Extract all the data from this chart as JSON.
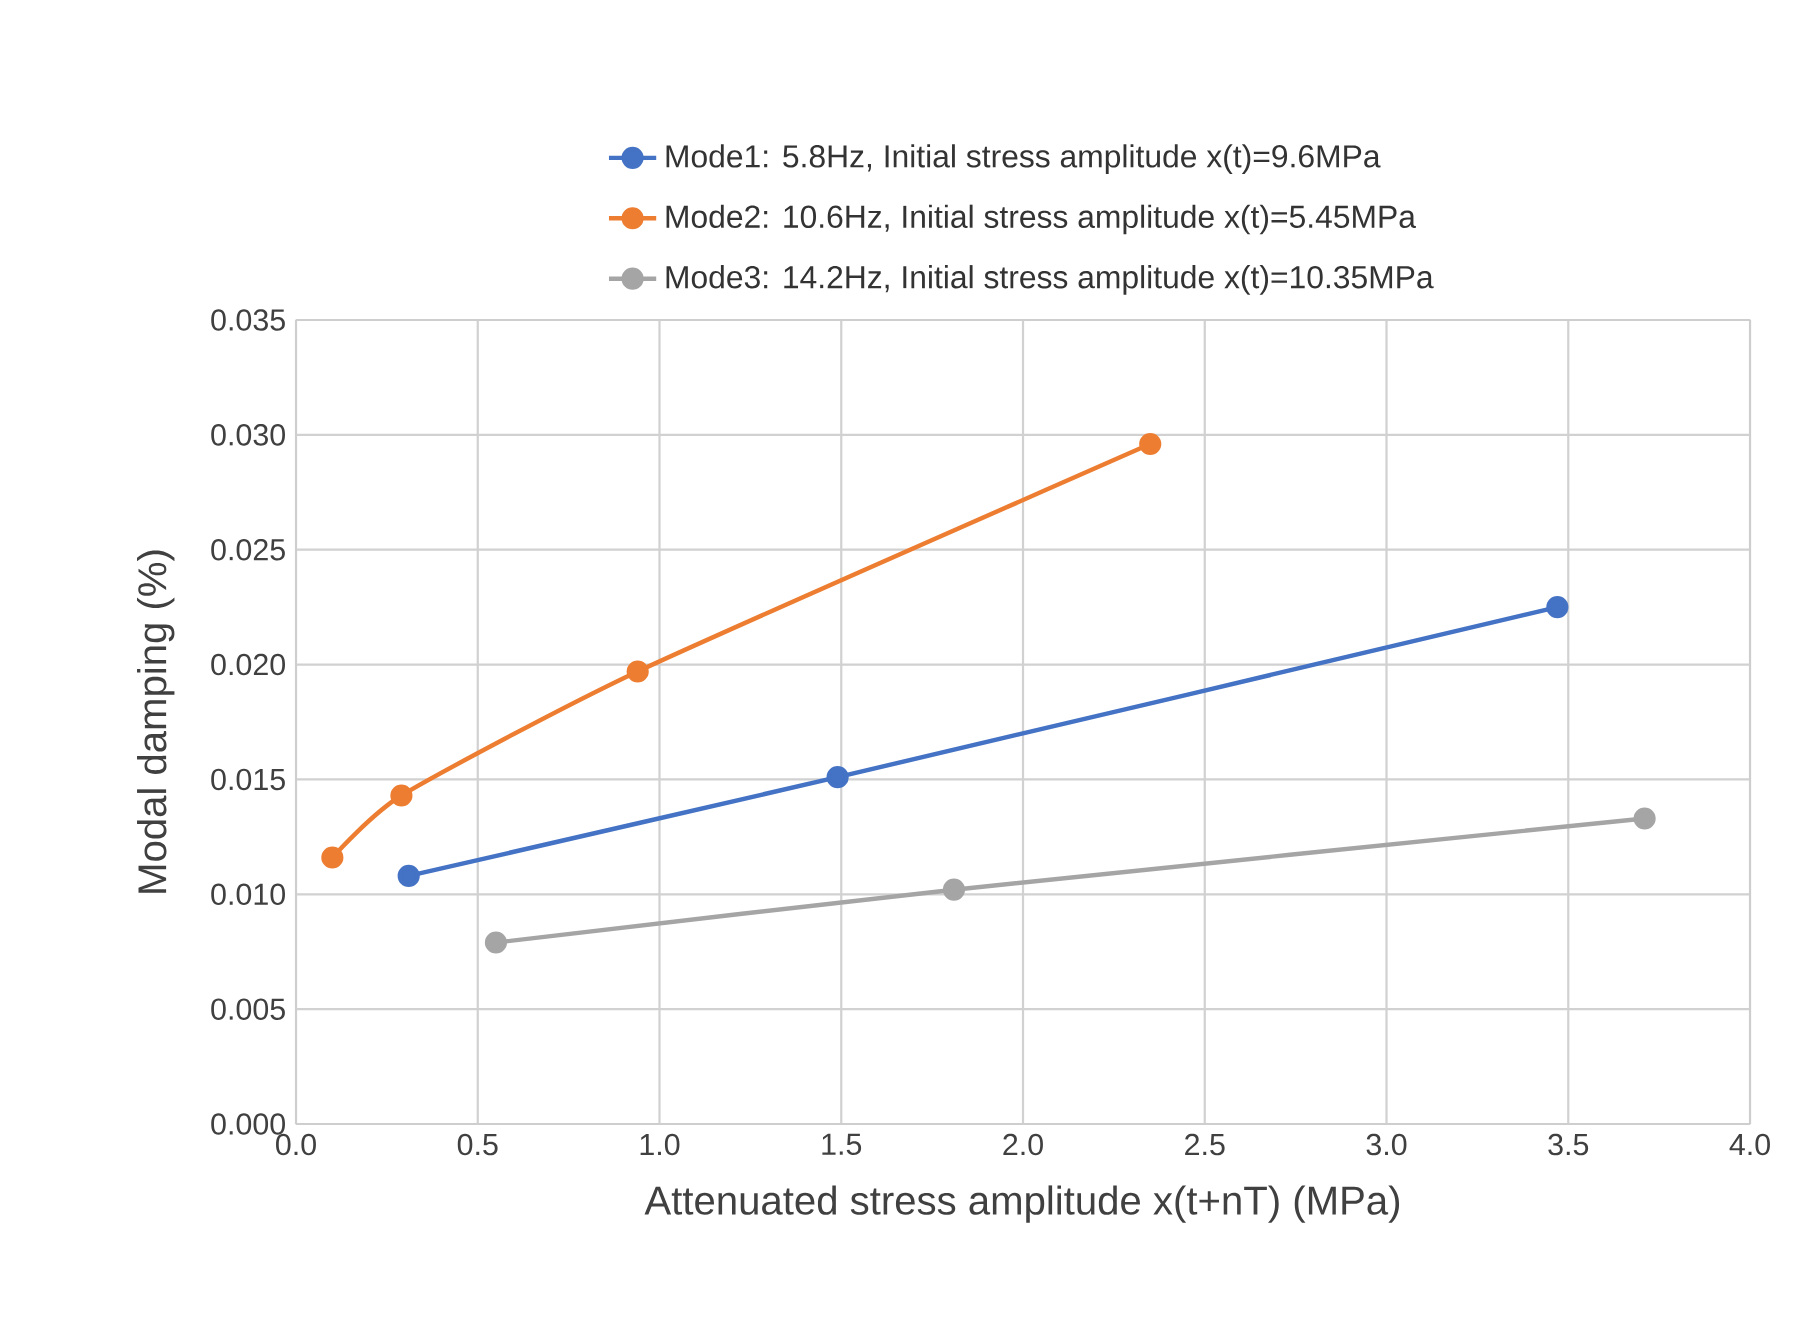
{
  "chart_data": {
    "type": "line",
    "xlabel": "Attenuated stress amplitude x(t+nT) (MPa)",
    "ylabel": "Modal damping (%)",
    "xlim": [
      0,
      4
    ],
    "xticks": [
      {
        "value": 0,
        "label": "0.0"
      },
      {
        "value": 0.5,
        "label": "0.5"
      },
      {
        "value": 1,
        "label": "1.0"
      },
      {
        "value": 1.5,
        "label": "1.5"
      },
      {
        "value": 2,
        "label": "2.0"
      },
      {
        "value": 2.5,
        "label": "2.5"
      },
      {
        "value": 3,
        "label": "3.0"
      },
      {
        "value": 3.5,
        "label": "3.5"
      },
      {
        "value": 4,
        "label": "4.0"
      }
    ],
    "ylim": [
      0,
      0.035
    ],
    "yticks": [
      {
        "value": 0,
        "label": "0.000"
      },
      {
        "value": 0.005,
        "label": "0.005"
      },
      {
        "value": 0.01,
        "label": "0.010"
      },
      {
        "value": 0.015,
        "label": "0.015"
      },
      {
        "value": 0.02,
        "label": "0.020"
      },
      {
        "value": 0.025,
        "label": "0.025"
      },
      {
        "value": 0.03,
        "label": "0.030"
      },
      {
        "value": 0.035,
        "label": "0.035"
      }
    ],
    "grid": true,
    "legend": "top",
    "marker": "circle",
    "line_style": "solid",
    "series": [
      {
        "name": "Mode1: 5.8Hz, Initial stress amplitude x(t)=9.6MPa",
        "color": "#4472c4",
        "x": [
          0.31,
          1.49,
          3.47
        ],
        "values": [
          0.0108,
          0.0151,
          0.0225
        ]
      },
      {
        "name": "Mode2: 10.6Hz, Initial stress amplitude x(t)=5.45MPa",
        "color": "#ed7d31",
        "x": [
          0.1,
          0.29,
          0.94,
          2.35
        ],
        "values": [
          0.0116,
          0.0143,
          0.0197,
          0.0296
        ]
      },
      {
        "name": "Mode3: 14.2Hz, Initial stress amplitude x(t)=10.35MPa",
        "color": "#a5a5a5",
        "x": [
          0.55,
          1.81,
          3.71
        ],
        "values": [
          0.0079,
          0.0102,
          0.0133
        ]
      }
    ]
  }
}
